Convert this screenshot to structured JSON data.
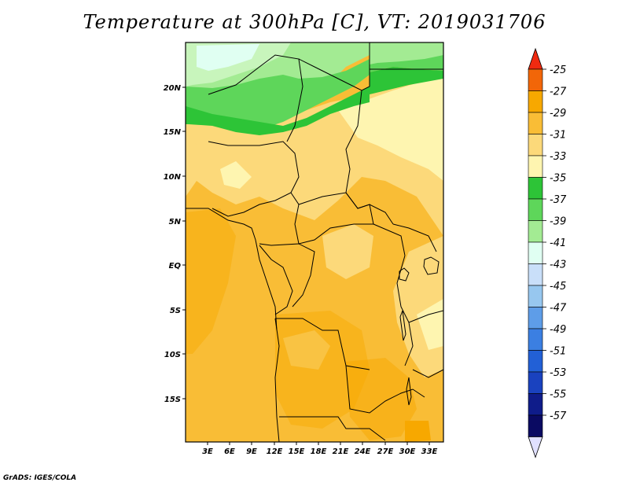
{
  "title": "Temperature at 300hPa [C], VT: 2019031706",
  "footer": "GrADS: IGES/COLA",
  "map": {
    "lon_labels": [
      "3E",
      "6E",
      "9E",
      "12E",
      "15E",
      "18E",
      "21E",
      "24E",
      "27E",
      "30E",
      "33E"
    ],
    "lat_labels": [
      "20N",
      "15N",
      "10N",
      "5N",
      "EQ",
      "5S",
      "10S",
      "15S"
    ]
  },
  "colorbar": {
    "labels": [
      "-25",
      "-27",
      "-29",
      "-31",
      "-33",
      "-35",
      "-37",
      "-39",
      "-41",
      "-43",
      "-45",
      "-47",
      "-49",
      "-51",
      "-53",
      "-55",
      "-57"
    ],
    "colors": [
      "#f02a10",
      "#f26608",
      "#f7a800",
      "#f9bd36",
      "#fcd97a",
      "#fef5b0",
      "#2dc437",
      "#5ed65a",
      "#a3eb93",
      "#e0fff2",
      "#c9dff9",
      "#97c7ef",
      "#5e9de8",
      "#3b7fe2",
      "#2260d6",
      "#1a42bf",
      "#0f1c8a",
      "#0a0a62",
      "#e0e0ff"
    ]
  }
}
